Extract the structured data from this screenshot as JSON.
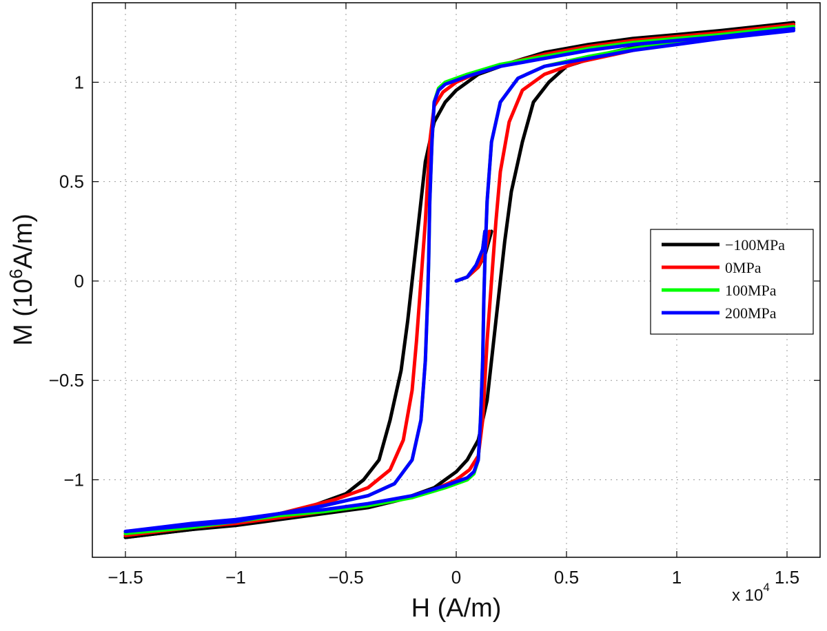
{
  "chart_data": {
    "type": "line",
    "xlabel": "H (A/m)",
    "ylabel_main": "M (10",
    "ylabel_sup": "6",
    "ylabel_tail": "A/m)",
    "x_multiplier": "x 10",
    "x_multiplier_sup": "4",
    "xlim": [
      -1.65,
      1.65
    ],
    "ylim": [
      -1.39,
      1.4
    ],
    "xticks": [
      -1.5,
      -1,
      -0.5,
      0,
      0.5,
      1,
      1.5
    ],
    "xtick_labels": [
      "−1.5",
      "−1",
      "−0.5",
      "0",
      "0.5",
      "1",
      "1.5"
    ],
    "yticks": [
      -1,
      -0.5,
      0,
      0.5,
      1
    ],
    "ytick_labels": [
      "−1",
      "−0.5",
      "0",
      "0.5",
      "1"
    ],
    "grid": true,
    "legend_position": "right",
    "series": [
      {
        "name": "−100MPa",
        "color": "#000000",
        "initial": [
          [
            0,
            0
          ],
          [
            0.05,
            0.02
          ],
          [
            0.1,
            0.07
          ],
          [
            0.13,
            0.13
          ],
          [
            0.16,
            0.25
          ]
        ],
        "descending": [
          [
            1.53,
            1.3
          ],
          [
            1.2,
            1.26
          ],
          [
            1.0,
            1.24
          ],
          [
            0.8,
            1.22
          ],
          [
            0.6,
            1.19
          ],
          [
            0.4,
            1.15
          ],
          [
            0.25,
            1.1
          ],
          [
            0.1,
            1.04
          ],
          [
            0,
            0.96
          ],
          [
            -0.05,
            0.9
          ],
          [
            -0.1,
            0.8
          ],
          [
            -0.14,
            0.6
          ],
          [
            -0.16,
            0.4
          ],
          [
            -0.18,
            0.2
          ],
          [
            -0.2,
            0
          ],
          [
            -0.22,
            -0.2
          ],
          [
            -0.25,
            -0.45
          ],
          [
            -0.3,
            -0.7
          ],
          [
            -0.35,
            -0.9
          ],
          [
            -0.42,
            -1.0
          ],
          [
            -0.5,
            -1.07
          ],
          [
            -0.7,
            -1.15
          ],
          [
            -1.0,
            -1.22
          ],
          [
            -1.2,
            -1.25
          ],
          [
            -1.5,
            -1.29
          ]
        ],
        "ascending": [
          [
            -1.5,
            -1.29
          ],
          [
            -1.2,
            -1.25
          ],
          [
            -1.0,
            -1.23
          ],
          [
            -0.8,
            -1.2
          ],
          [
            -0.6,
            -1.17
          ],
          [
            -0.4,
            -1.14
          ],
          [
            -0.25,
            -1.1
          ],
          [
            -0.1,
            -1.04
          ],
          [
            0,
            -0.96
          ],
          [
            0.05,
            -0.9
          ],
          [
            0.1,
            -0.8
          ],
          [
            0.14,
            -0.6
          ],
          [
            0.16,
            -0.4
          ],
          [
            0.18,
            -0.2
          ],
          [
            0.2,
            0
          ],
          [
            0.22,
            0.2
          ],
          [
            0.25,
            0.45
          ],
          [
            0.3,
            0.7
          ],
          [
            0.35,
            0.9
          ],
          [
            0.42,
            1.0
          ],
          [
            0.5,
            1.08
          ],
          [
            0.7,
            1.15
          ],
          [
            1.0,
            1.22
          ],
          [
            1.2,
            1.25
          ],
          [
            1.53,
            1.3
          ]
        ]
      },
      {
        "name": "0MPa",
        "color": "#ff0000",
        "initial": [
          [
            0,
            0
          ],
          [
            0.05,
            0.02
          ],
          [
            0.1,
            0.07
          ],
          [
            0.13,
            0.14
          ],
          [
            0.15,
            0.25
          ]
        ],
        "descending": [
          [
            1.53,
            1.29
          ],
          [
            1.2,
            1.25
          ],
          [
            1.0,
            1.23
          ],
          [
            0.8,
            1.21
          ],
          [
            0.6,
            1.18
          ],
          [
            0.4,
            1.14
          ],
          [
            0.25,
            1.1
          ],
          [
            0.1,
            1.05
          ],
          [
            0,
            1.0
          ],
          [
            -0.06,
            0.95
          ],
          [
            -0.1,
            0.88
          ],
          [
            -0.12,
            0.7
          ],
          [
            -0.13,
            0.5
          ],
          [
            -0.14,
            0.3
          ],
          [
            -0.16,
            0
          ],
          [
            -0.18,
            -0.3
          ],
          [
            -0.2,
            -0.55
          ],
          [
            -0.24,
            -0.8
          ],
          [
            -0.3,
            -0.95
          ],
          [
            -0.4,
            -1.04
          ],
          [
            -0.55,
            -1.1
          ],
          [
            -0.8,
            -1.17
          ],
          [
            -1.0,
            -1.21
          ],
          [
            -1.2,
            -1.24
          ],
          [
            -1.5,
            -1.28
          ]
        ],
        "ascending": [
          [
            -1.5,
            -1.28
          ],
          [
            -1.2,
            -1.24
          ],
          [
            -1.0,
            -1.22
          ],
          [
            -0.8,
            -1.19
          ],
          [
            -0.6,
            -1.16
          ],
          [
            -0.4,
            -1.13
          ],
          [
            -0.25,
            -1.1
          ],
          [
            -0.1,
            -1.05
          ],
          [
            0,
            -1.0
          ],
          [
            0.06,
            -0.95
          ],
          [
            0.1,
            -0.88
          ],
          [
            0.12,
            -0.7
          ],
          [
            0.13,
            -0.5
          ],
          [
            0.14,
            -0.3
          ],
          [
            0.16,
            0
          ],
          [
            0.18,
            0.3
          ],
          [
            0.2,
            0.55
          ],
          [
            0.24,
            0.8
          ],
          [
            0.3,
            0.96
          ],
          [
            0.4,
            1.04
          ],
          [
            0.55,
            1.1
          ],
          [
            0.8,
            1.16
          ],
          [
            1.0,
            1.2
          ],
          [
            1.2,
            1.24
          ],
          [
            1.53,
            1.29
          ]
        ]
      },
      {
        "name": "100MPa",
        "color": "#00ff00",
        "initial": [
          [
            0,
            0
          ],
          [
            0.05,
            0.02
          ],
          [
            0.09,
            0.08
          ],
          [
            0.12,
            0.16
          ],
          [
            0.13,
            0.25
          ]
        ],
        "descending": [
          [
            1.53,
            1.28
          ],
          [
            1.2,
            1.24
          ],
          [
            1.0,
            1.22
          ],
          [
            0.8,
            1.2
          ],
          [
            0.6,
            1.17
          ],
          [
            0.4,
            1.13
          ],
          [
            0.2,
            1.09
          ],
          [
            0.05,
            1.04
          ],
          [
            -0.05,
            1.0
          ],
          [
            -0.08,
            0.97
          ],
          [
            -0.1,
            0.9
          ],
          [
            -0.11,
            0.7
          ],
          [
            -0.12,
            0.4
          ],
          [
            -0.125,
            0.1
          ],
          [
            -0.13,
            -0.1
          ],
          [
            -0.14,
            -0.4
          ],
          [
            -0.16,
            -0.7
          ],
          [
            -0.2,
            -0.9
          ],
          [
            -0.28,
            -1.02
          ],
          [
            -0.4,
            -1.08
          ],
          [
            -0.6,
            -1.13
          ],
          [
            -0.8,
            -1.17
          ],
          [
            -1.0,
            -1.21
          ],
          [
            -1.2,
            -1.24
          ],
          [
            -1.5,
            -1.27
          ]
        ],
        "ascending": [
          [
            -1.5,
            -1.27
          ],
          [
            -1.2,
            -1.23
          ],
          [
            -1.0,
            -1.21
          ],
          [
            -0.8,
            -1.18
          ],
          [
            -0.6,
            -1.16
          ],
          [
            -0.4,
            -1.13
          ],
          [
            -0.2,
            -1.09
          ],
          [
            -0.05,
            -1.04
          ],
          [
            0.05,
            -1.0
          ],
          [
            0.08,
            -0.97
          ],
          [
            0.1,
            -0.9
          ],
          [
            0.11,
            -0.7
          ],
          [
            0.12,
            -0.4
          ],
          [
            0.125,
            -0.1
          ],
          [
            0.13,
            0.1
          ],
          [
            0.14,
            0.4
          ],
          [
            0.16,
            0.7
          ],
          [
            0.2,
            0.9
          ],
          [
            0.28,
            1.02
          ],
          [
            0.4,
            1.08
          ],
          [
            0.6,
            1.13
          ],
          [
            0.8,
            1.17
          ],
          [
            1.0,
            1.2
          ],
          [
            1.2,
            1.23
          ],
          [
            1.53,
            1.27
          ]
        ]
      },
      {
        "name": "200MPa",
        "color": "#0000ff",
        "initial": [
          [
            0,
            0
          ],
          [
            0.05,
            0.02
          ],
          [
            0.09,
            0.08
          ],
          [
            0.12,
            0.16
          ],
          [
            0.13,
            0.25
          ]
        ],
        "descending": [
          [
            1.53,
            1.27
          ],
          [
            1.2,
            1.23
          ],
          [
            1.0,
            1.21
          ],
          [
            0.8,
            1.19
          ],
          [
            0.6,
            1.16
          ],
          [
            0.4,
            1.12
          ],
          [
            0.2,
            1.08
          ],
          [
            0.05,
            1.03
          ],
          [
            -0.05,
            0.99
          ],
          [
            -0.08,
            0.96
          ],
          [
            -0.1,
            0.9
          ],
          [
            -0.11,
            0.7
          ],
          [
            -0.12,
            0.4
          ],
          [
            -0.125,
            0.1
          ],
          [
            -0.13,
            -0.1
          ],
          [
            -0.14,
            -0.4
          ],
          [
            -0.16,
            -0.7
          ],
          [
            -0.2,
            -0.9
          ],
          [
            -0.28,
            -1.02
          ],
          [
            -0.4,
            -1.08
          ],
          [
            -0.6,
            -1.13
          ],
          [
            -0.8,
            -1.17
          ],
          [
            -1.0,
            -1.21
          ],
          [
            -1.2,
            -1.23
          ],
          [
            -1.5,
            -1.26
          ]
        ],
        "ascending": [
          [
            -1.5,
            -1.26
          ],
          [
            -1.2,
            -1.22
          ],
          [
            -1.0,
            -1.2
          ],
          [
            -0.8,
            -1.17
          ],
          [
            -0.6,
            -1.15
          ],
          [
            -0.4,
            -1.12
          ],
          [
            -0.2,
            -1.08
          ],
          [
            -0.05,
            -1.03
          ],
          [
            0.05,
            -0.99
          ],
          [
            0.08,
            -0.96
          ],
          [
            0.1,
            -0.9
          ],
          [
            0.11,
            -0.7
          ],
          [
            0.12,
            -0.4
          ],
          [
            0.125,
            -0.1
          ],
          [
            0.13,
            0.1
          ],
          [
            0.14,
            0.4
          ],
          [
            0.16,
            0.7
          ],
          [
            0.2,
            0.9
          ],
          [
            0.28,
            1.02
          ],
          [
            0.4,
            1.08
          ],
          [
            0.6,
            1.12
          ],
          [
            0.8,
            1.16
          ],
          [
            1.0,
            1.19
          ],
          [
            1.2,
            1.22
          ],
          [
            1.53,
            1.26
          ]
        ]
      }
    ]
  }
}
